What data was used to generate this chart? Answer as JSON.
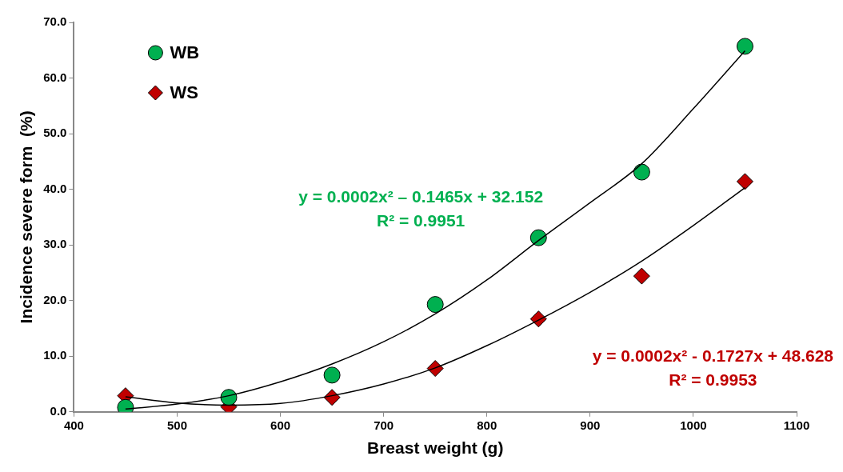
{
  "chart_data": {
    "type": "scatter",
    "xlabel": "Breast weight (g)",
    "ylabel": "Incidence severe form  (%)",
    "xlim": [
      400,
      1100
    ],
    "xticks": [
      400,
      500,
      600,
      700,
      800,
      900,
      1000,
      1100
    ],
    "ylim": [
      0,
      70
    ],
    "yticks": [
      {
        "value": 0,
        "label": "0.0"
      },
      {
        "value": 10,
        "label": "10.0"
      },
      {
        "value": 20,
        "label": "20.0"
      },
      {
        "value": 30,
        "label": "30.0"
      },
      {
        "value": 40,
        "label": "40.0"
      },
      {
        "value": 50,
        "label": "50.0"
      },
      {
        "value": 60,
        "label": "60.0"
      },
      {
        "value": 70,
        "label": "70.0"
      }
    ],
    "x": [
      450,
      550,
      650,
      750,
      850,
      950,
      1050
    ],
    "series": [
      {
        "name": "WB",
        "color": "#00b050",
        "marker": "circle",
        "values": [
          0.8,
          2.6,
          6.6,
          19.3,
          31.3,
          43.1,
          65.7
        ]
      },
      {
        "name": "WS",
        "color": "#c00000",
        "marker": "diamond",
        "values": [
          2.9,
          0.9,
          2.6,
          7.8,
          16.7,
          24.4,
          41.4
        ]
      },
      {
        "type": "line",
        "color": "#000000",
        "marker": "none",
        "x": [
          450,
          500,
          550,
          600,
          650,
          700,
          750,
          800,
          850,
          900,
          950,
          1000,
          1050
        ],
        "values": [
          0.5,
          1.4,
          2.9,
          5.4,
          8.6,
          12.6,
          17.6,
          23.7,
          30.8,
          37.6,
          44.6,
          54.5,
          64.9
        ]
      },
      {
        "type": "line",
        "color": "#000000",
        "marker": "none",
        "x": [
          450,
          500,
          550,
          600,
          650,
          700,
          750,
          800,
          850,
          900,
          950,
          1000,
          1050
        ],
        "values": [
          2.7,
          1.6,
          1.2,
          1.5,
          2.9,
          5.0,
          7.9,
          11.9,
          16.5,
          21.5,
          27.1,
          33.5,
          40.3
        ]
      }
    ],
    "annotations": [
      "y = 0.0002x² – 0.1465x + 32.152\nR² = 0.9951",
      "y = 0.0002x² - 0.1727x + 48.628\nR² = 0.9953"
    ],
    "legend": "top left",
    "grid": false
  }
}
